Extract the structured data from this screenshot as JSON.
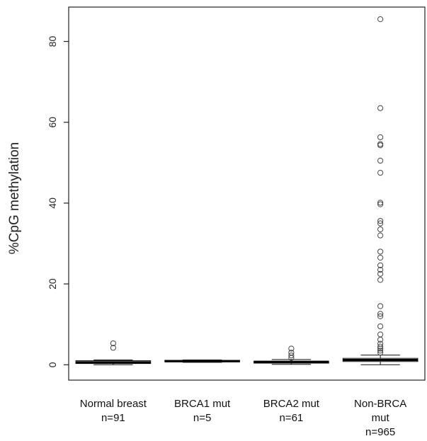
{
  "chart_data": {
    "type": "box",
    "title": "",
    "xlabel": "",
    "ylabel": "%CpG methylation",
    "ylim": [
      -3.8,
      88.5
    ],
    "yticks": [
      "0",
      "20",
      "40",
      "60",
      "80"
    ],
    "categories": [
      {
        "line1": "Normal breast",
        "line2": "n=91",
        "line3": ""
      },
      {
        "line1": "BRCA1 mut",
        "line2": "n=5",
        "line3": ""
      },
      {
        "line1": "BRCA2 mut",
        "line2": "n=61",
        "line3": ""
      },
      {
        "line1": "Non-BRCA",
        "line2": "mut",
        "line3": "n=965"
      }
    ],
    "boxes": [
      {
        "q1": 0.3,
        "median": 0.6,
        "q3": 1.0,
        "whisker_low": 0.0,
        "whisker_high": 1.2,
        "outliers": [
          4.2,
          5.3
        ]
      },
      {
        "q1": 0.7,
        "median": 0.9,
        "q3": 1.1,
        "whisker_low": 0.6,
        "whisker_high": 1.2,
        "outliers": []
      },
      {
        "q1": 0.4,
        "median": 0.7,
        "q3": 0.9,
        "whisker_low": 0.1,
        "whisker_high": 1.3,
        "outliers": [
          1.7,
          2.3,
          3.0,
          4.0
        ]
      },
      {
        "q1": 0.8,
        "median": 1.2,
        "q3": 1.6,
        "whisker_low": 0.0,
        "whisker_high": 2.4,
        "outliers": [
          3.0,
          3.5,
          4.0,
          4.5,
          5.2,
          6.2,
          7.5,
          9.5,
          12.0,
          12.6,
          14.5,
          21.0,
          22.5,
          23.5,
          24.6,
          26.5,
          28.0,
          32.0,
          33.5,
          35.0,
          35.6,
          39.7,
          40.1,
          47.5,
          50.5,
          54.3,
          54.6,
          56.3,
          63.5,
          85.5
        ]
      }
    ]
  }
}
